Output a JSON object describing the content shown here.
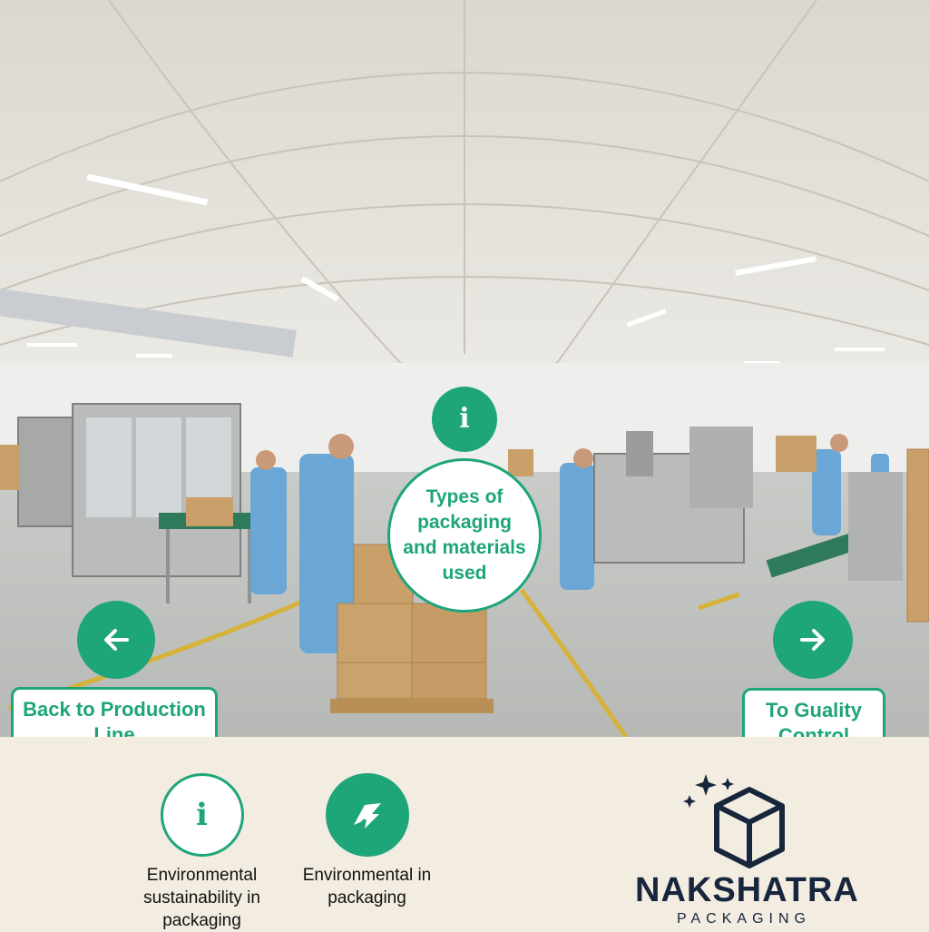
{
  "scene": {
    "name": "Packaging hall panorama"
  },
  "hotspots": {
    "top_info_icon": "info-icon",
    "info_bubble_text": "Types of packaging and materials used"
  },
  "navigation": {
    "back": {
      "label": "Back to Production Line",
      "icon": "arrow-left-icon"
    },
    "next": {
      "label": "To Guality Control",
      "icon": "arrow-right-icon"
    }
  },
  "tray": {
    "items": [
      {
        "label": "Environmental sustainability in packaging",
        "icon": "info-icon"
      },
      {
        "label": "Environmental in packaging",
        "icon": "recycle-leaf-icon"
      }
    ]
  },
  "brand": {
    "name": "NAKSHATRA",
    "tagline": "PACKAGING"
  },
  "colors": {
    "accent": "#1ea57a",
    "brand_dark": "#17263d",
    "tray_background": "#f3ece1"
  }
}
